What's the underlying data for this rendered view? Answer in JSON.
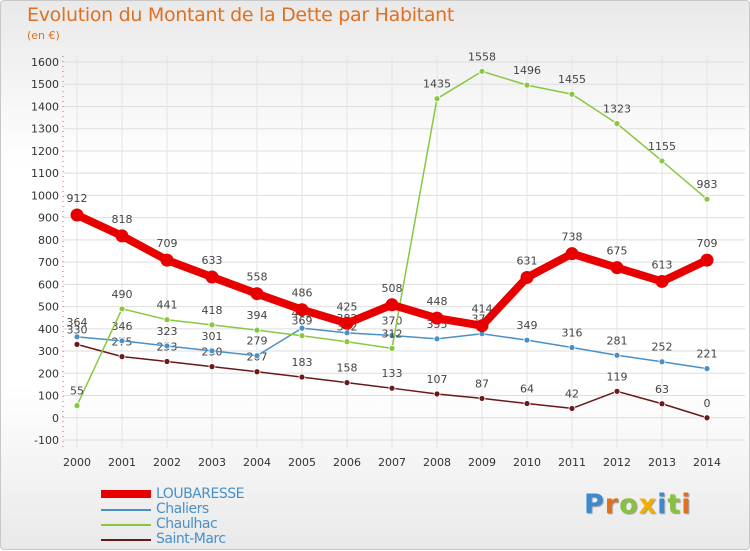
{
  "chart_data": {
    "type": "line",
    "title": "Evolution du Montant de la Dette par Habitant",
    "subtitle": "(en €)",
    "x": [
      2000,
      2001,
      2002,
      2003,
      2004,
      2005,
      2006,
      2007,
      2008,
      2009,
      2010,
      2011,
      2012,
      2013,
      2014
    ],
    "xlim": [
      2000,
      2014
    ],
    "ylim": [
      -100,
      1600
    ],
    "yticks": [
      -100,
      0,
      100,
      200,
      300,
      400,
      500,
      600,
      700,
      800,
      900,
      1000,
      1100,
      1200,
      1300,
      1400,
      1500,
      1600
    ],
    "grid": true,
    "legend_position": "bottom-left",
    "series": [
      {
        "name": "LOUBARESSE",
        "color": "#e80000",
        "values": [
          912,
          818,
          709,
          633,
          558,
          486,
          425,
          508,
          448,
          414,
          631,
          738,
          675,
          613,
          709
        ]
      },
      {
        "name": "Chaliers",
        "color": "#4a90c8",
        "values": [
          364,
          346,
          323,
          301,
          279,
          403,
          382,
          370,
          355,
          378,
          349,
          316,
          281,
          252,
          221
        ]
      },
      {
        "name": "Chaulhac",
        "color": "#88c840",
        "values": [
          55,
          490,
          441,
          418,
          394,
          369,
          342,
          312,
          1435,
          1558,
          1496,
          1455,
          1323,
          1155,
          983
        ]
      },
      {
        "name": "Saint-Marc",
        "color": "#6a1818",
        "values": [
          330,
          275,
          253,
          230,
          207,
          183,
          158,
          133,
          107,
          87,
          64,
          42,
          119,
          63,
          0
        ]
      }
    ]
  },
  "logo": {
    "letters": [
      "P",
      "r",
      "o",
      "x",
      "i",
      "t",
      "i"
    ]
  }
}
